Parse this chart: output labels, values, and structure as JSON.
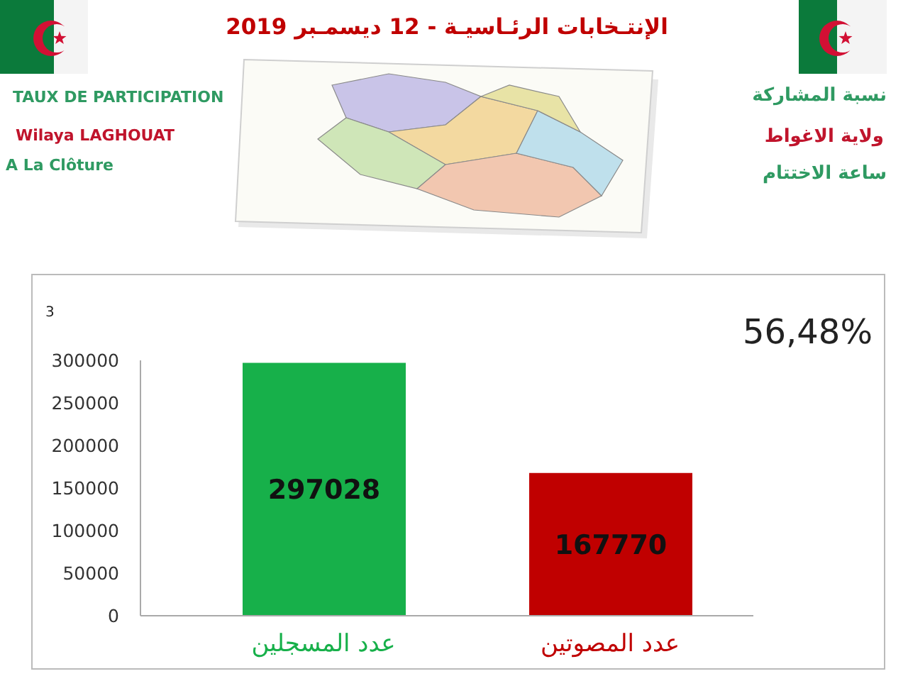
{
  "chart_data": {
    "type": "bar",
    "title": "الإنتـخابات الرئـاسيـة - 12 ديسمـبر 2019",
    "categories": [
      "عدد المسجلين",
      "عدد المصوتين"
    ],
    "values": [
      297028,
      167770
    ],
    "colors": [
      "#17b04a",
      "#c00000"
    ],
    "ylim": [
      0,
      300000
    ],
    "yticks": [
      0,
      50000,
      100000,
      150000,
      200000,
      250000,
      300000
    ],
    "data_labels": true,
    "annotations": [
      "TAUX DE PARTICIPATION",
      "Wilaya LAGHOUAT",
      "A La Clôture",
      "نسبة المشاركة",
      "ولاية الاغواط",
      "ساعة الاختتام",
      "56,48%",
      "3"
    ]
  }
}
